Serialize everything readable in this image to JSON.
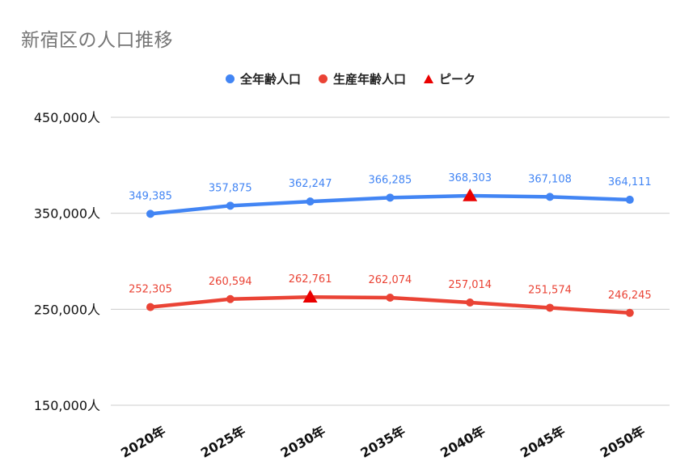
{
  "chart_data": {
    "type": "line",
    "title": "新宿区の人口推移",
    "categories": [
      "2020年",
      "2025年",
      "2030年",
      "2035年",
      "2040年",
      "2045年",
      "2050年"
    ],
    "series": [
      {
        "name": "全年齢人口",
        "color": "#4285f4",
        "values": [
          349385,
          357875,
          362247,
          366285,
          368303,
          367108,
          364111
        ],
        "labels": [
          "349,385",
          "357,875",
          "362,247",
          "366,285",
          "368,303",
          "367,108",
          "364,111"
        ],
        "peak_index": 4
      },
      {
        "name": "生産年齢人口",
        "color": "#ea4335",
        "values": [
          252305,
          260594,
          262761,
          262074,
          257014,
          251574,
          246245
        ],
        "labels": [
          "252,305",
          "260,594",
          "262,761",
          "262,074",
          "257,014",
          "251,574",
          "246,245"
        ],
        "peak_index": 2
      }
    ],
    "peak_legend": {
      "name": "ピーク",
      "color": "#ea0000",
      "marker": "triangle"
    },
    "ylim": [
      150000,
      450000
    ],
    "yticks": [
      {
        "value": 450000,
        "label": "450,000人"
      },
      {
        "value": 350000,
        "label": "350,000人"
      },
      {
        "value": 250000,
        "label": "250,000人"
      },
      {
        "value": 150000,
        "label": "150,000人"
      }
    ],
    "grid": true,
    "legend_position": "top-center"
  }
}
